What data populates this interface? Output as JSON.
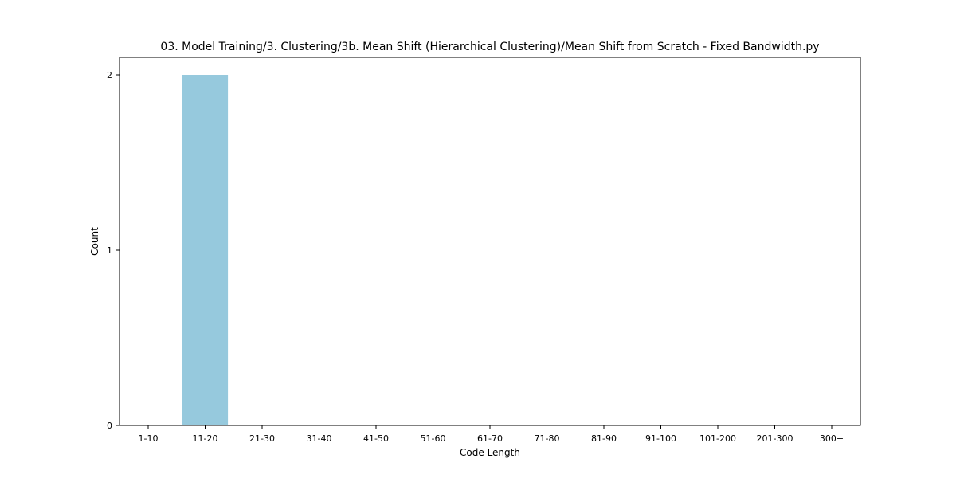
{
  "chart_data": {
    "type": "bar",
    "title": "03. Model Training/3. Clustering/3b. Mean Shift (Hierarchical Clustering)/Mean Shift from Scratch - Fixed Bandwidth.py",
    "xlabel": "Code Length",
    "ylabel": "Count",
    "categories": [
      "1-10",
      "11-20",
      "21-30",
      "31-40",
      "41-50",
      "51-60",
      "61-70",
      "71-80",
      "81-90",
      "91-100",
      "101-200",
      "201-300",
      "300+"
    ],
    "values": [
      0,
      2,
      0,
      0,
      0,
      0,
      0,
      0,
      0,
      0,
      0,
      0,
      0
    ],
    "ylim": [
      0,
      2.1
    ],
    "yticks": [
      0,
      1,
      2
    ],
    "bar_color": "#96c9dd",
    "grid": false,
    "legend": "none"
  }
}
